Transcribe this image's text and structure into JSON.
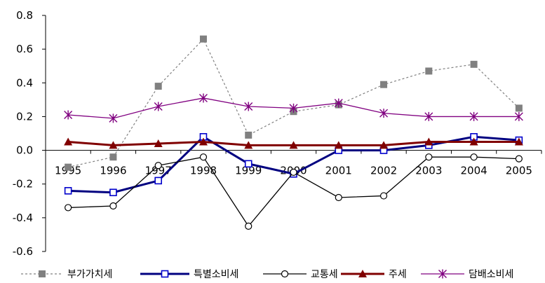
{
  "chart_data": {
    "type": "line",
    "title": "",
    "xlabel": "",
    "ylabel": "",
    "x": [
      "1995",
      "1996",
      "1997",
      "1998",
      "1999",
      "2000",
      "2001",
      "2002",
      "2003",
      "2004",
      "2005"
    ],
    "ylim": [
      -0.6,
      0.8
    ],
    "yticks": [
      "-0.6",
      "-0.4",
      "-0.2",
      "0.0",
      "0.2",
      "0.4",
      "0.6",
      "0.8"
    ],
    "grid": false,
    "legend_position": "bottom",
    "series": [
      {
        "name": "부가가치세",
        "color": "#808080",
        "line_style": "dotted",
        "marker": "filled-square",
        "values": [
          -0.1,
          -0.04,
          0.38,
          0.66,
          0.09,
          0.23,
          0.27,
          0.39,
          0.47,
          0.51,
          0.25
        ]
      },
      {
        "name": "특별소비세",
        "color": "#000080",
        "line_style": "solid-thick",
        "marker": "open-square",
        "values": [
          -0.24,
          -0.25,
          -0.18,
          0.08,
          -0.08,
          -0.14,
          0.0,
          0.0,
          0.03,
          0.08,
          0.06
        ]
      },
      {
        "name": "교통세",
        "color": "#000000",
        "line_style": "solid",
        "marker": "open-circle",
        "values": [
          -0.34,
          -0.33,
          -0.09,
          -0.04,
          -0.45,
          -0.13,
          -0.28,
          -0.27,
          -0.04,
          -0.04,
          -0.05
        ]
      },
      {
        "name": "주세",
        "color": "#800000",
        "line_style": "solid-thick",
        "marker": "filled-triangle",
        "values": [
          0.05,
          0.03,
          0.04,
          0.05,
          0.03,
          0.03,
          0.03,
          0.03,
          0.05,
          0.05,
          0.05
        ]
      },
      {
        "name": "담배소비세",
        "color": "#800080",
        "line_style": "solid",
        "marker": "asterisk",
        "values": [
          0.21,
          0.19,
          0.26,
          0.31,
          0.26,
          0.25,
          0.28,
          0.22,
          0.2,
          0.2,
          0.2
        ]
      }
    ]
  }
}
